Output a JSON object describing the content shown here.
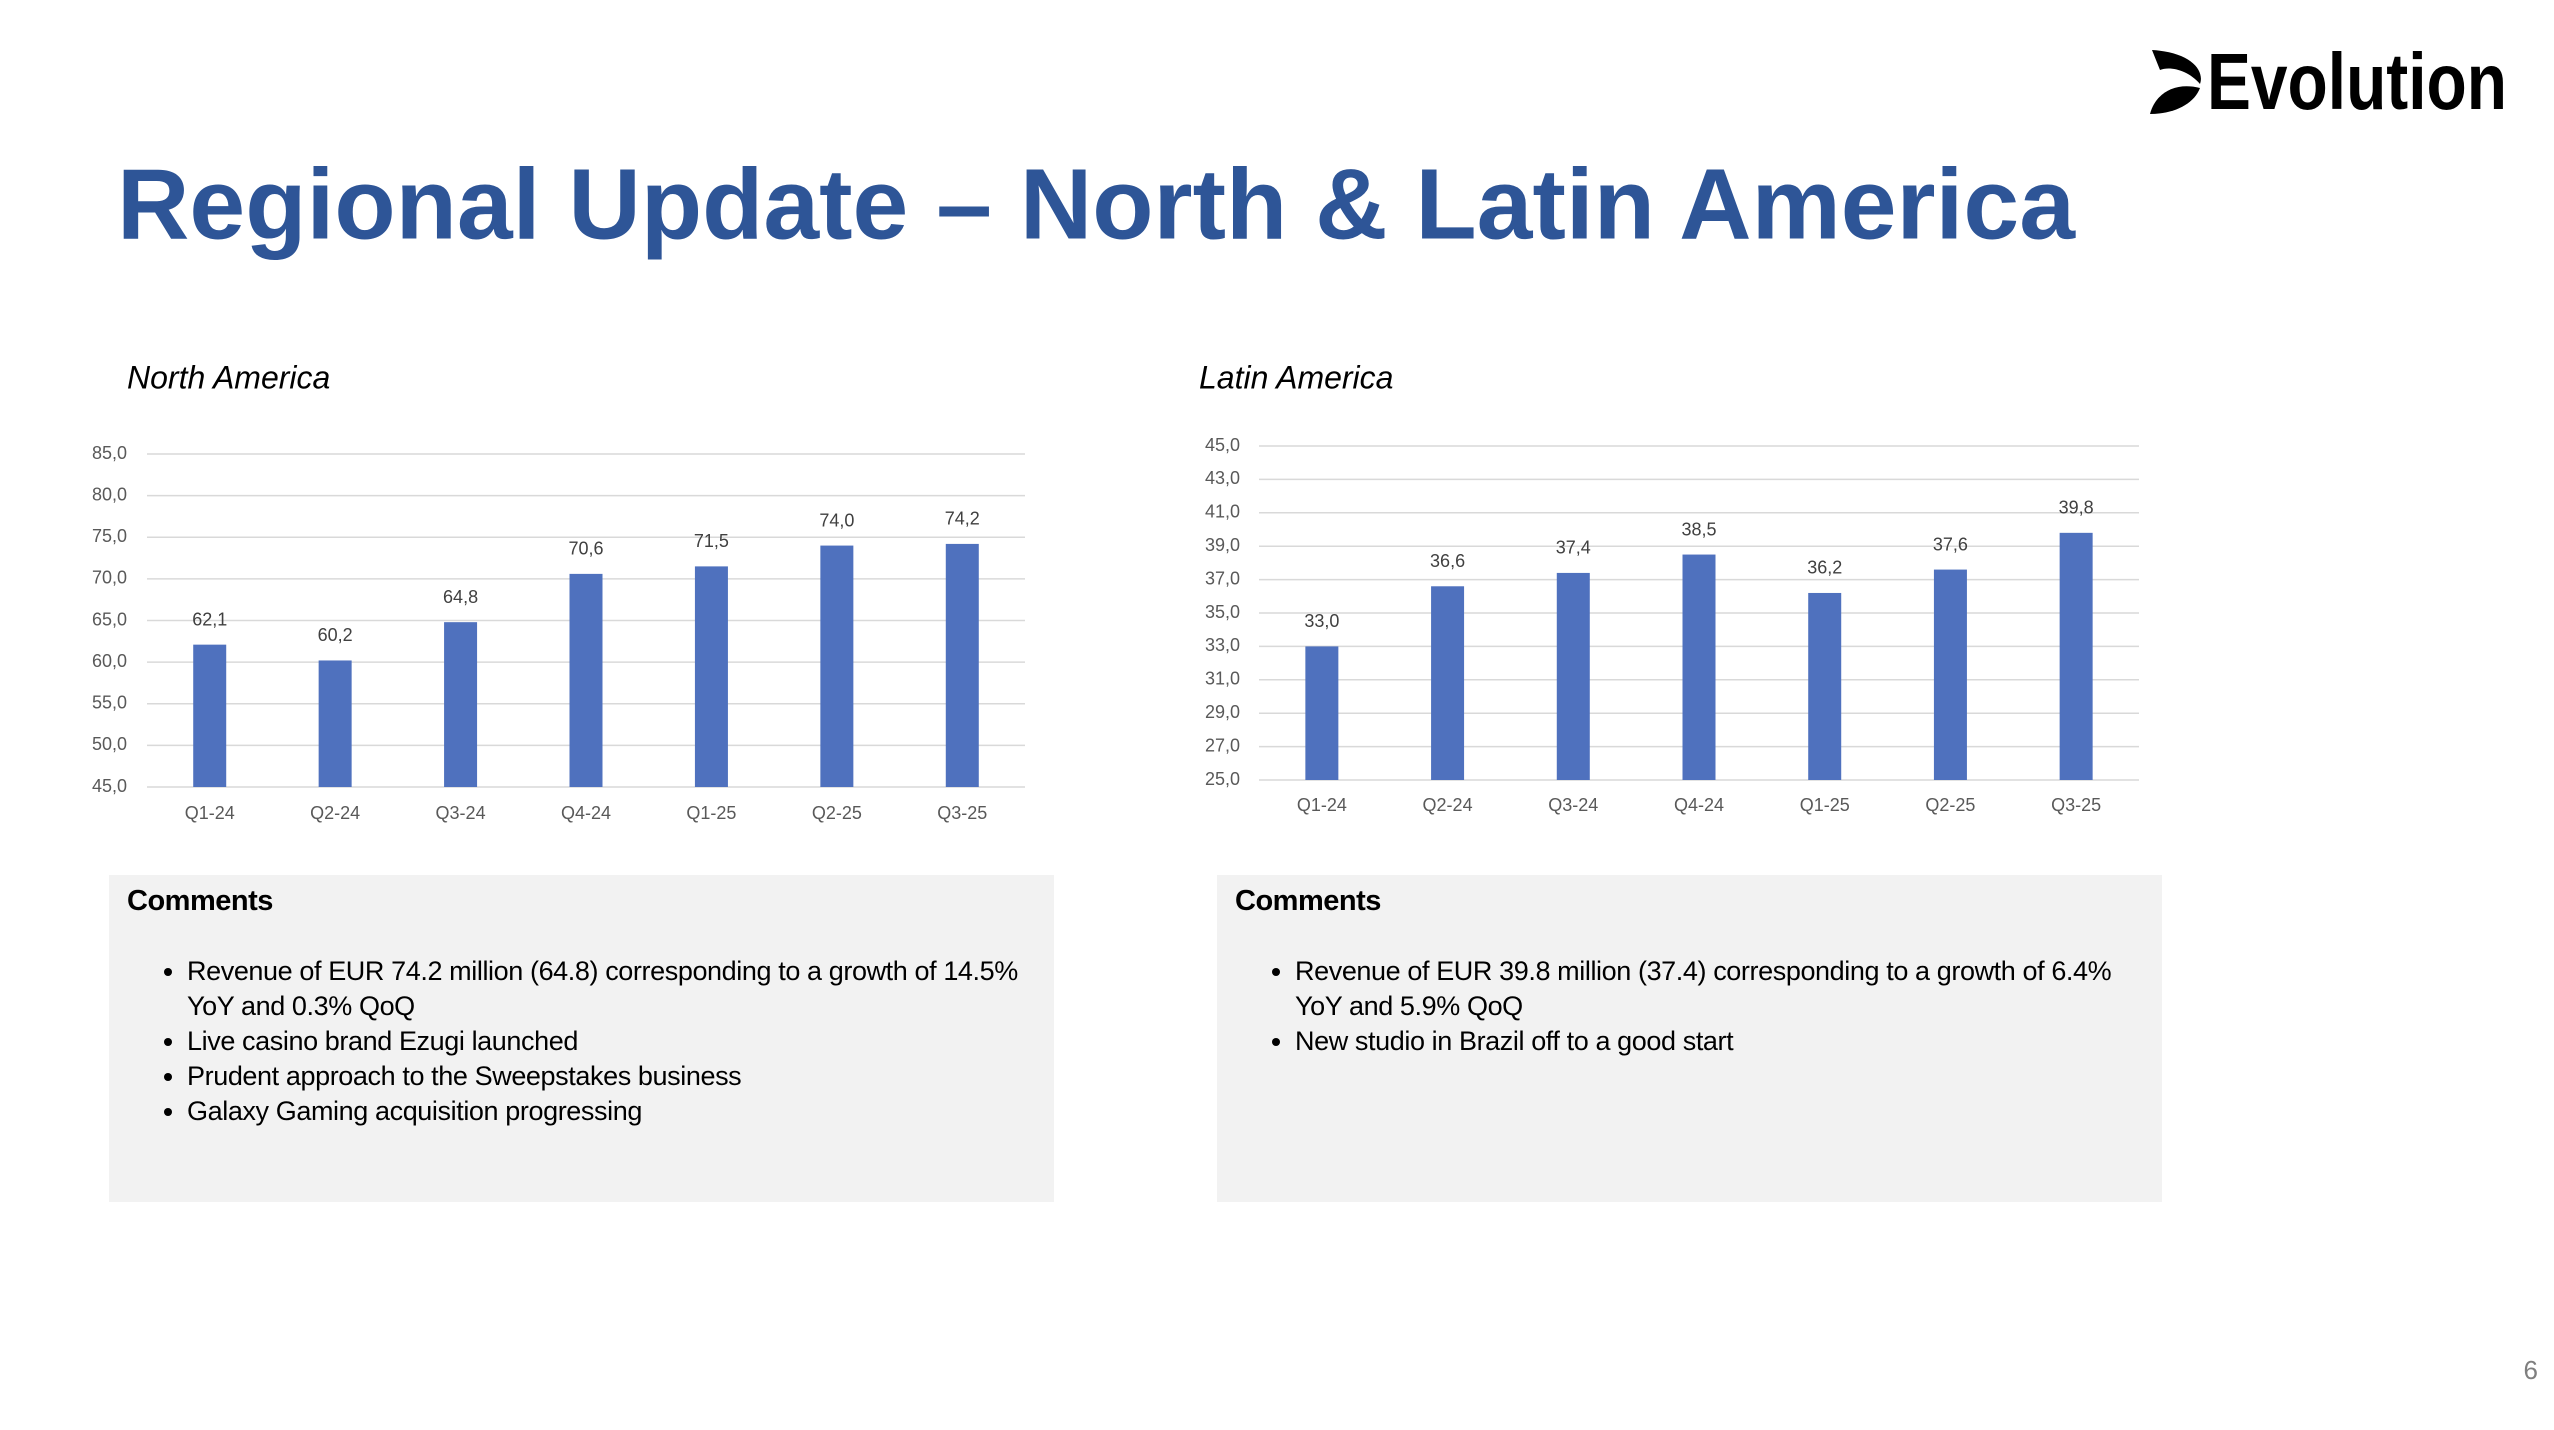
{
  "title": "Regional Update – North & Latin America",
  "logo": "Evolution",
  "page_number": "6",
  "chart_data": [
    {
      "type": "bar",
      "title": "North America",
      "categories": [
        "Q1-24",
        "Q2-24",
        "Q3-24",
        "Q4-24",
        "Q1-25",
        "Q2-25",
        "Q3-25"
      ],
      "values": [
        62.1,
        60.2,
        64.8,
        70.6,
        71.5,
        74.0,
        74.2
      ],
      "value_labels": [
        "62,1",
        "60,2",
        "64,8",
        "70,6",
        "71,5",
        "74,0",
        "74,2"
      ],
      "color": "#4f71be",
      "grid": true,
      "ylim": [
        45,
        85
      ],
      "yticks": [
        {
          "value": 45,
          "label": "45,0"
        },
        {
          "value": 50,
          "label": "50,0"
        },
        {
          "value": 55,
          "label": "55,0"
        },
        {
          "value": 60,
          "label": "60,0"
        },
        {
          "value": 65,
          "label": "65,0"
        },
        {
          "value": 70,
          "label": "70,0"
        },
        {
          "value": 75,
          "label": "75,0"
        },
        {
          "value": 80,
          "label": "80,0"
        },
        {
          "value": 85,
          "label": "85,0"
        }
      ]
    },
    {
      "type": "bar",
      "title": "Latin America",
      "categories": [
        "Q1-24",
        "Q2-24",
        "Q3-24",
        "Q4-24",
        "Q1-25",
        "Q2-25",
        "Q3-25"
      ],
      "values": [
        33.0,
        36.6,
        37.4,
        38.5,
        36.2,
        37.6,
        39.8
      ],
      "value_labels": [
        "33,0",
        "36,6",
        "37,4",
        "38,5",
        "36,2",
        "37,6",
        "39,8"
      ],
      "color": "#4f71be",
      "grid": true,
      "ylim": [
        25,
        45
      ],
      "yticks": [
        {
          "value": 25,
          "label": "25,0"
        },
        {
          "value": 27,
          "label": "27,0"
        },
        {
          "value": 29,
          "label": "29,0"
        },
        {
          "value": 31,
          "label": "31,0"
        },
        {
          "value": 33,
          "label": "33,0"
        },
        {
          "value": 35,
          "label": "35,0"
        },
        {
          "value": 37,
          "label": "37,0"
        },
        {
          "value": 39,
          "label": "39,0"
        },
        {
          "value": 41,
          "label": "41,0"
        },
        {
          "value": 43,
          "label": "43,0"
        },
        {
          "value": 45,
          "label": "45,0"
        }
      ]
    }
  ],
  "comments": [
    {
      "heading": "Comments",
      "bullets": [
        "Revenue of EUR 74.2 million (64.8) corresponding to a growth of 14.5% YoY and 0.3% QoQ",
        "Live casino brand Ezugi launched",
        "Prudent approach to the Sweepstakes business",
        "Galaxy Gaming acquisition progressing"
      ]
    },
    {
      "heading": "Comments",
      "bullets": [
        "Revenue of EUR 39.8 million (37.4) corresponding to a growth of 6.4% YoY and 5.9% QoQ",
        "New studio in Brazil off to a good start"
      ]
    }
  ]
}
